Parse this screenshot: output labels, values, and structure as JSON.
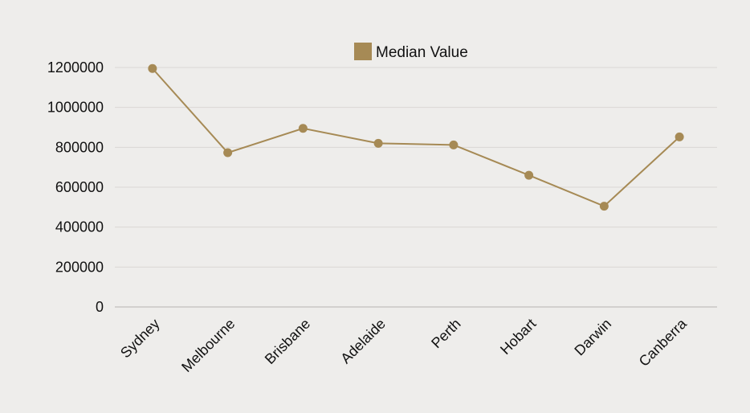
{
  "chart_data": {
    "type": "line",
    "categories": [
      "Sydney",
      "Melbourne",
      "Brisbane",
      "Adelaide",
      "Perth",
      "Hobart",
      "Darwin",
      "Canberra"
    ],
    "series": [
      {
        "name": "Median Value",
        "values": [
          1195000,
          773000,
          895000,
          820000,
          812000,
          660000,
          505000,
          852000
        ]
      }
    ],
    "ylim": [
      0,
      1200000
    ],
    "yticks": [
      "0",
      "200000",
      "400000",
      "600000",
      "800000",
      "1000000",
      "1200000"
    ],
    "grid": true,
    "legend_position": "top-center",
    "colors": {
      "series": "#a68a55",
      "background": "#eeedeb",
      "grid": "#d9d7d4",
      "axis": "#c9c7c4",
      "text": "#111111"
    }
  }
}
